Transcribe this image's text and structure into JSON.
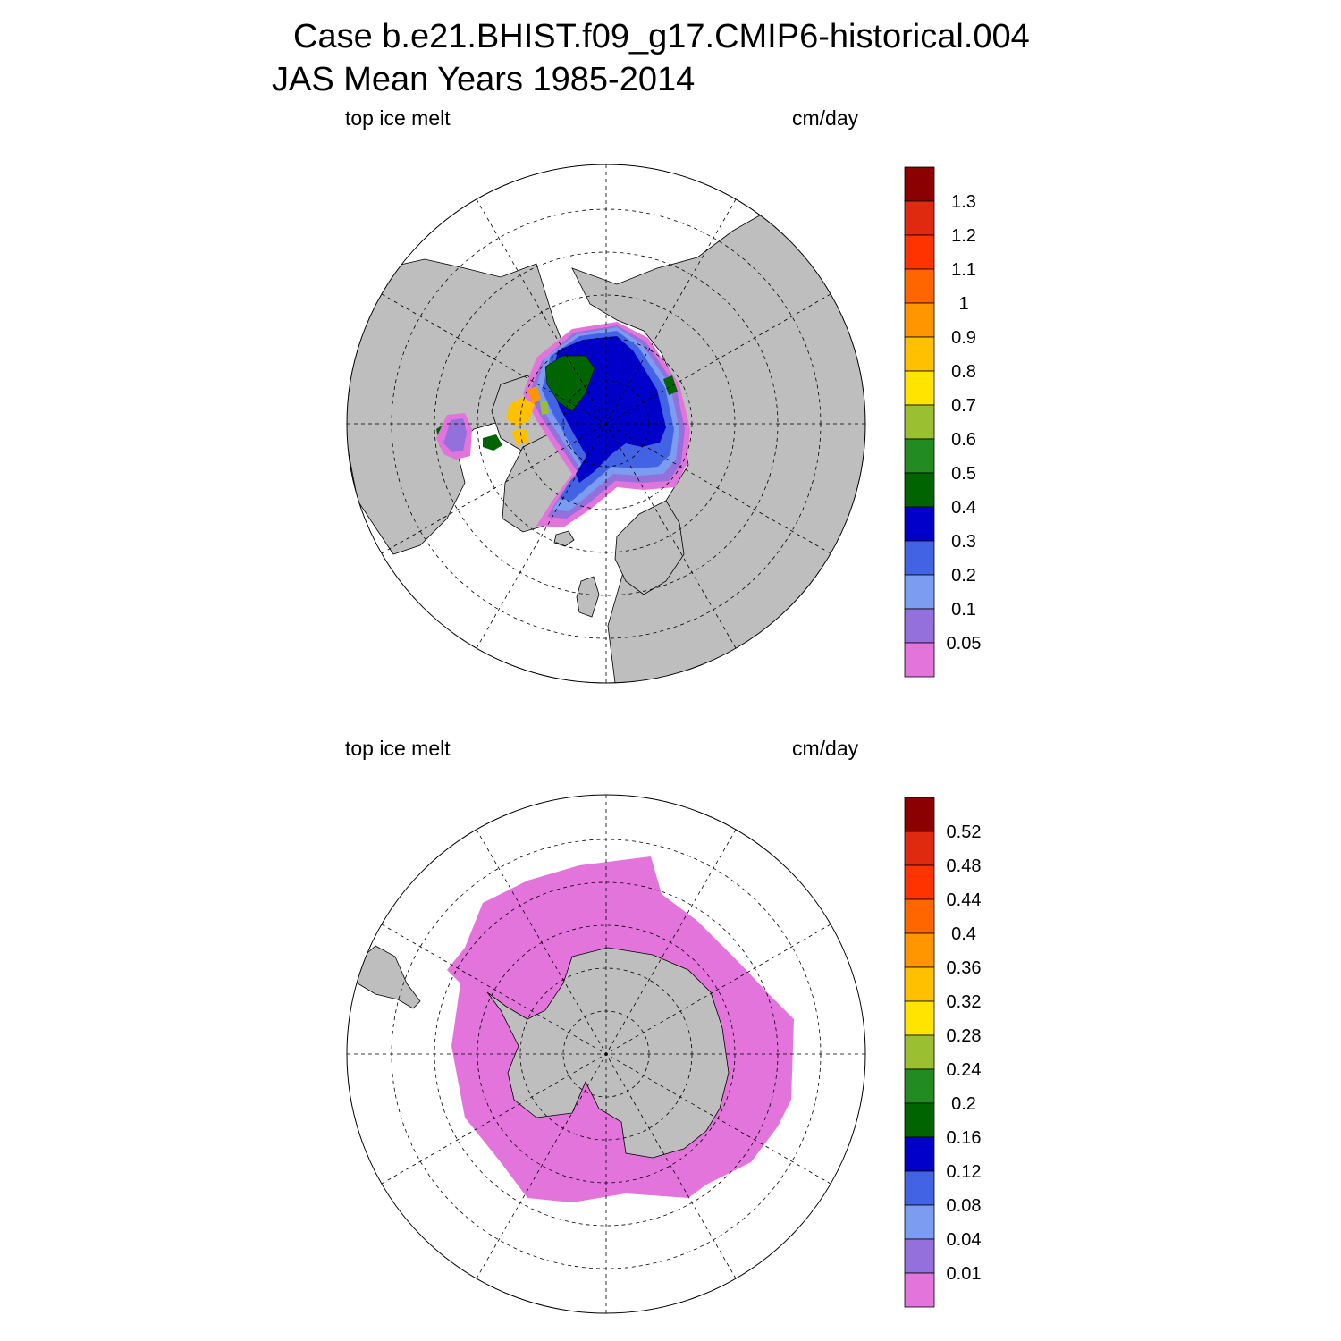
{
  "title_line1": "Case b.e21.BHIST.f09_g17.CMIP6-historical.004",
  "title_line2": "JAS Mean   Years 1985-2014",
  "panels": [
    {
      "variable": "top ice melt",
      "units": "cm/day",
      "hemisphere": "north",
      "colorbar": {
        "colors": [
          "#e374dc",
          "#9370db",
          "#7b9cf0",
          "#4363e5",
          "#0000c8",
          "#006400",
          "#228b22",
          "#9ac031",
          "#ffe400",
          "#ffc000",
          "#ff9600",
          "#ff6600",
          "#ff3300",
          "#e02a10",
          "#8b0000"
        ],
        "labels": [
          "0.05",
          "0.1",
          "0.2",
          "0.3",
          "0.4",
          "0.5",
          "0.6",
          "0.7",
          "0.8",
          "0.9",
          "1",
          "1.1",
          "1.2",
          "1.3"
        ]
      }
    },
    {
      "variable": "top ice melt",
      "units": "cm/day",
      "hemisphere": "south",
      "colorbar": {
        "colors": [
          "#e374dc",
          "#9370db",
          "#7b9cf0",
          "#4363e5",
          "#0000c8",
          "#006400",
          "#228b22",
          "#9ac031",
          "#ffe400",
          "#ffc000",
          "#ff9600",
          "#ff6600",
          "#ff3300",
          "#e02a10",
          "#8b0000"
        ],
        "labels": [
          "0.01",
          "0.04",
          "0.08",
          "0.12",
          "0.16",
          "0.2",
          "0.24",
          "0.28",
          "0.32",
          "0.36",
          "0.4",
          "0.44",
          "0.48",
          "0.52"
        ]
      }
    }
  ],
  "colors": {
    "land": "#bebebe",
    "ocean": "#ffffff",
    "outline": "#000000"
  }
}
